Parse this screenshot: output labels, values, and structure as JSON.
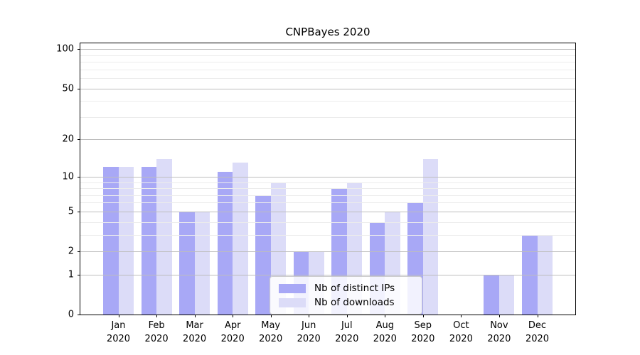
{
  "figure": {
    "title": "CNPBayes 2020"
  },
  "chart_data": {
    "type": "bar",
    "title": "CNPBayes 2020",
    "categories": [
      "Jan",
      "Feb",
      "Mar",
      "Apr",
      "May",
      "Jun",
      "Jul",
      "Aug",
      "Sep",
      "Oct",
      "Nov",
      "Dec"
    ],
    "category_year": "2020",
    "series": [
      {
        "name": "Nb of distinct IPs",
        "color": "#a8a8f6",
        "values": [
          12,
          12,
          5,
          11,
          7,
          2,
          8,
          4,
          6,
          0,
          1,
          3
        ]
      },
      {
        "name": "Nb of downloads",
        "color": "#dcdcf8",
        "values": [
          12,
          14,
          5,
          13,
          9,
          2,
          9,
          5,
          14,
          0,
          1,
          3
        ]
      }
    ],
    "xlabel": "",
    "ylabel": "",
    "yscale": "log1p",
    "ylim": [
      0,
      116
    ],
    "yticks": [
      0,
      1,
      2,
      5,
      10,
      20,
      50,
      100
    ],
    "yticks_minor": [
      3,
      4,
      6,
      7,
      8,
      9,
      30,
      40,
      60,
      70,
      80,
      90
    ],
    "grid": true,
    "legend_position": "lower-center"
  }
}
